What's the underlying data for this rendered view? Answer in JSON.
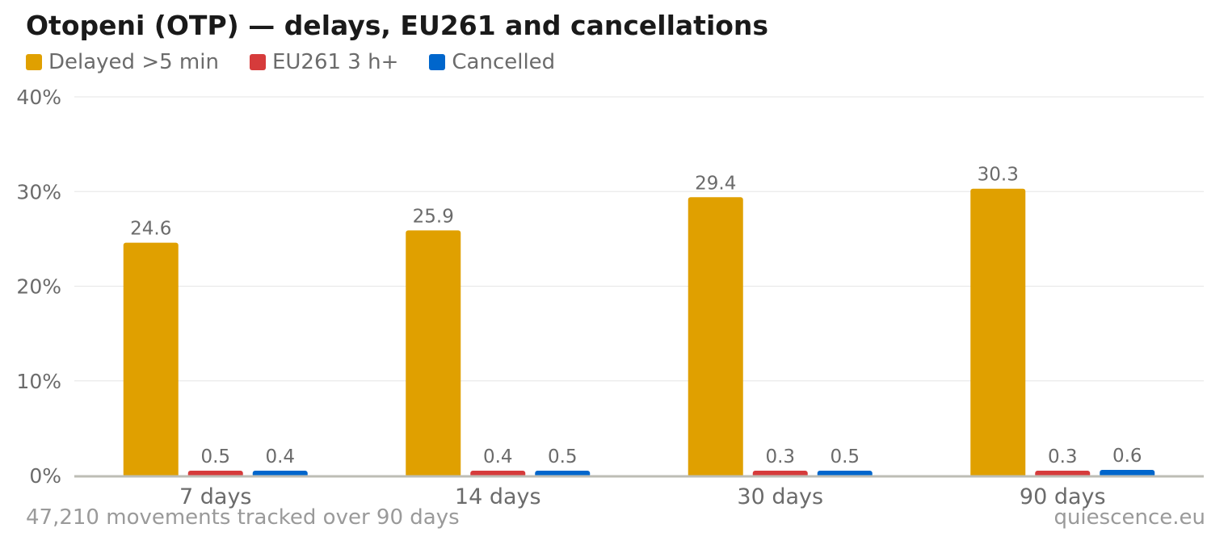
{
  "title": "Otopeni (OTP) — delays, EU261 and cancellations",
  "footer": {
    "left": "47,210 movements tracked over 90 days",
    "right": "quiescence.eu"
  },
  "chart_data": {
    "type": "bar",
    "title": "Otopeni (OTP) — delays, EU261 and cancellations",
    "xlabel": "",
    "ylabel": "",
    "categories": [
      "7 days",
      "14 days",
      "30 days",
      "90 days"
    ],
    "series": [
      {
        "name": "Delayed >5 min",
        "color": "#e0a000",
        "values": [
          24.6,
          25.9,
          29.4,
          30.3
        ],
        "labels": [
          "24.6",
          "25.9",
          "29.4",
          "30.3"
        ]
      },
      {
        "name": "EU261 3 h+",
        "color": "#d63b3b",
        "values": [
          0.5,
          0.4,
          0.3,
          0.3
        ],
        "labels": [
          "0.5",
          "0.4",
          "0.3",
          "0.3"
        ]
      },
      {
        "name": "Cancelled",
        "color": "#0066cc",
        "values": [
          0.4,
          0.5,
          0.5,
          0.6
        ],
        "labels": [
          "0.4",
          "0.5",
          "0.5",
          "0.6"
        ]
      }
    ],
    "ylim": [
      0,
      40
    ],
    "yticks": [
      0,
      10,
      20,
      30,
      40
    ],
    "ytick_labels": [
      "0%",
      "10%",
      "20%",
      "30%",
      "40%"
    ],
    "grid": true,
    "legend_position": "top-left"
  }
}
